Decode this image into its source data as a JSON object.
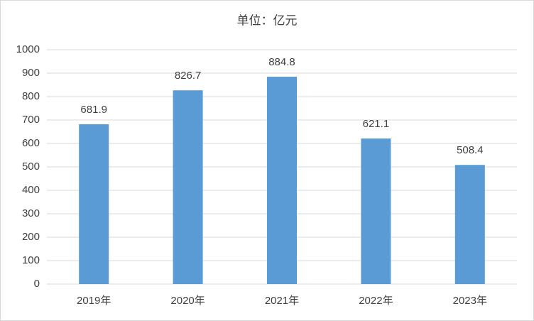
{
  "chart_data": {
    "type": "bar",
    "title": "单位：亿元",
    "categories": [
      "2019年",
      "2020年",
      "2021年",
      "2022年",
      "2023年"
    ],
    "values": [
      681.9,
      826.7,
      884.8,
      621.1,
      508.4
    ],
    "color": "#5b9bd5",
    "ylim": [
      0,
      1000
    ],
    "yticks": [
      0,
      100,
      200,
      300,
      400,
      500,
      600,
      700,
      800,
      900,
      1000
    ],
    "grid": true
  }
}
